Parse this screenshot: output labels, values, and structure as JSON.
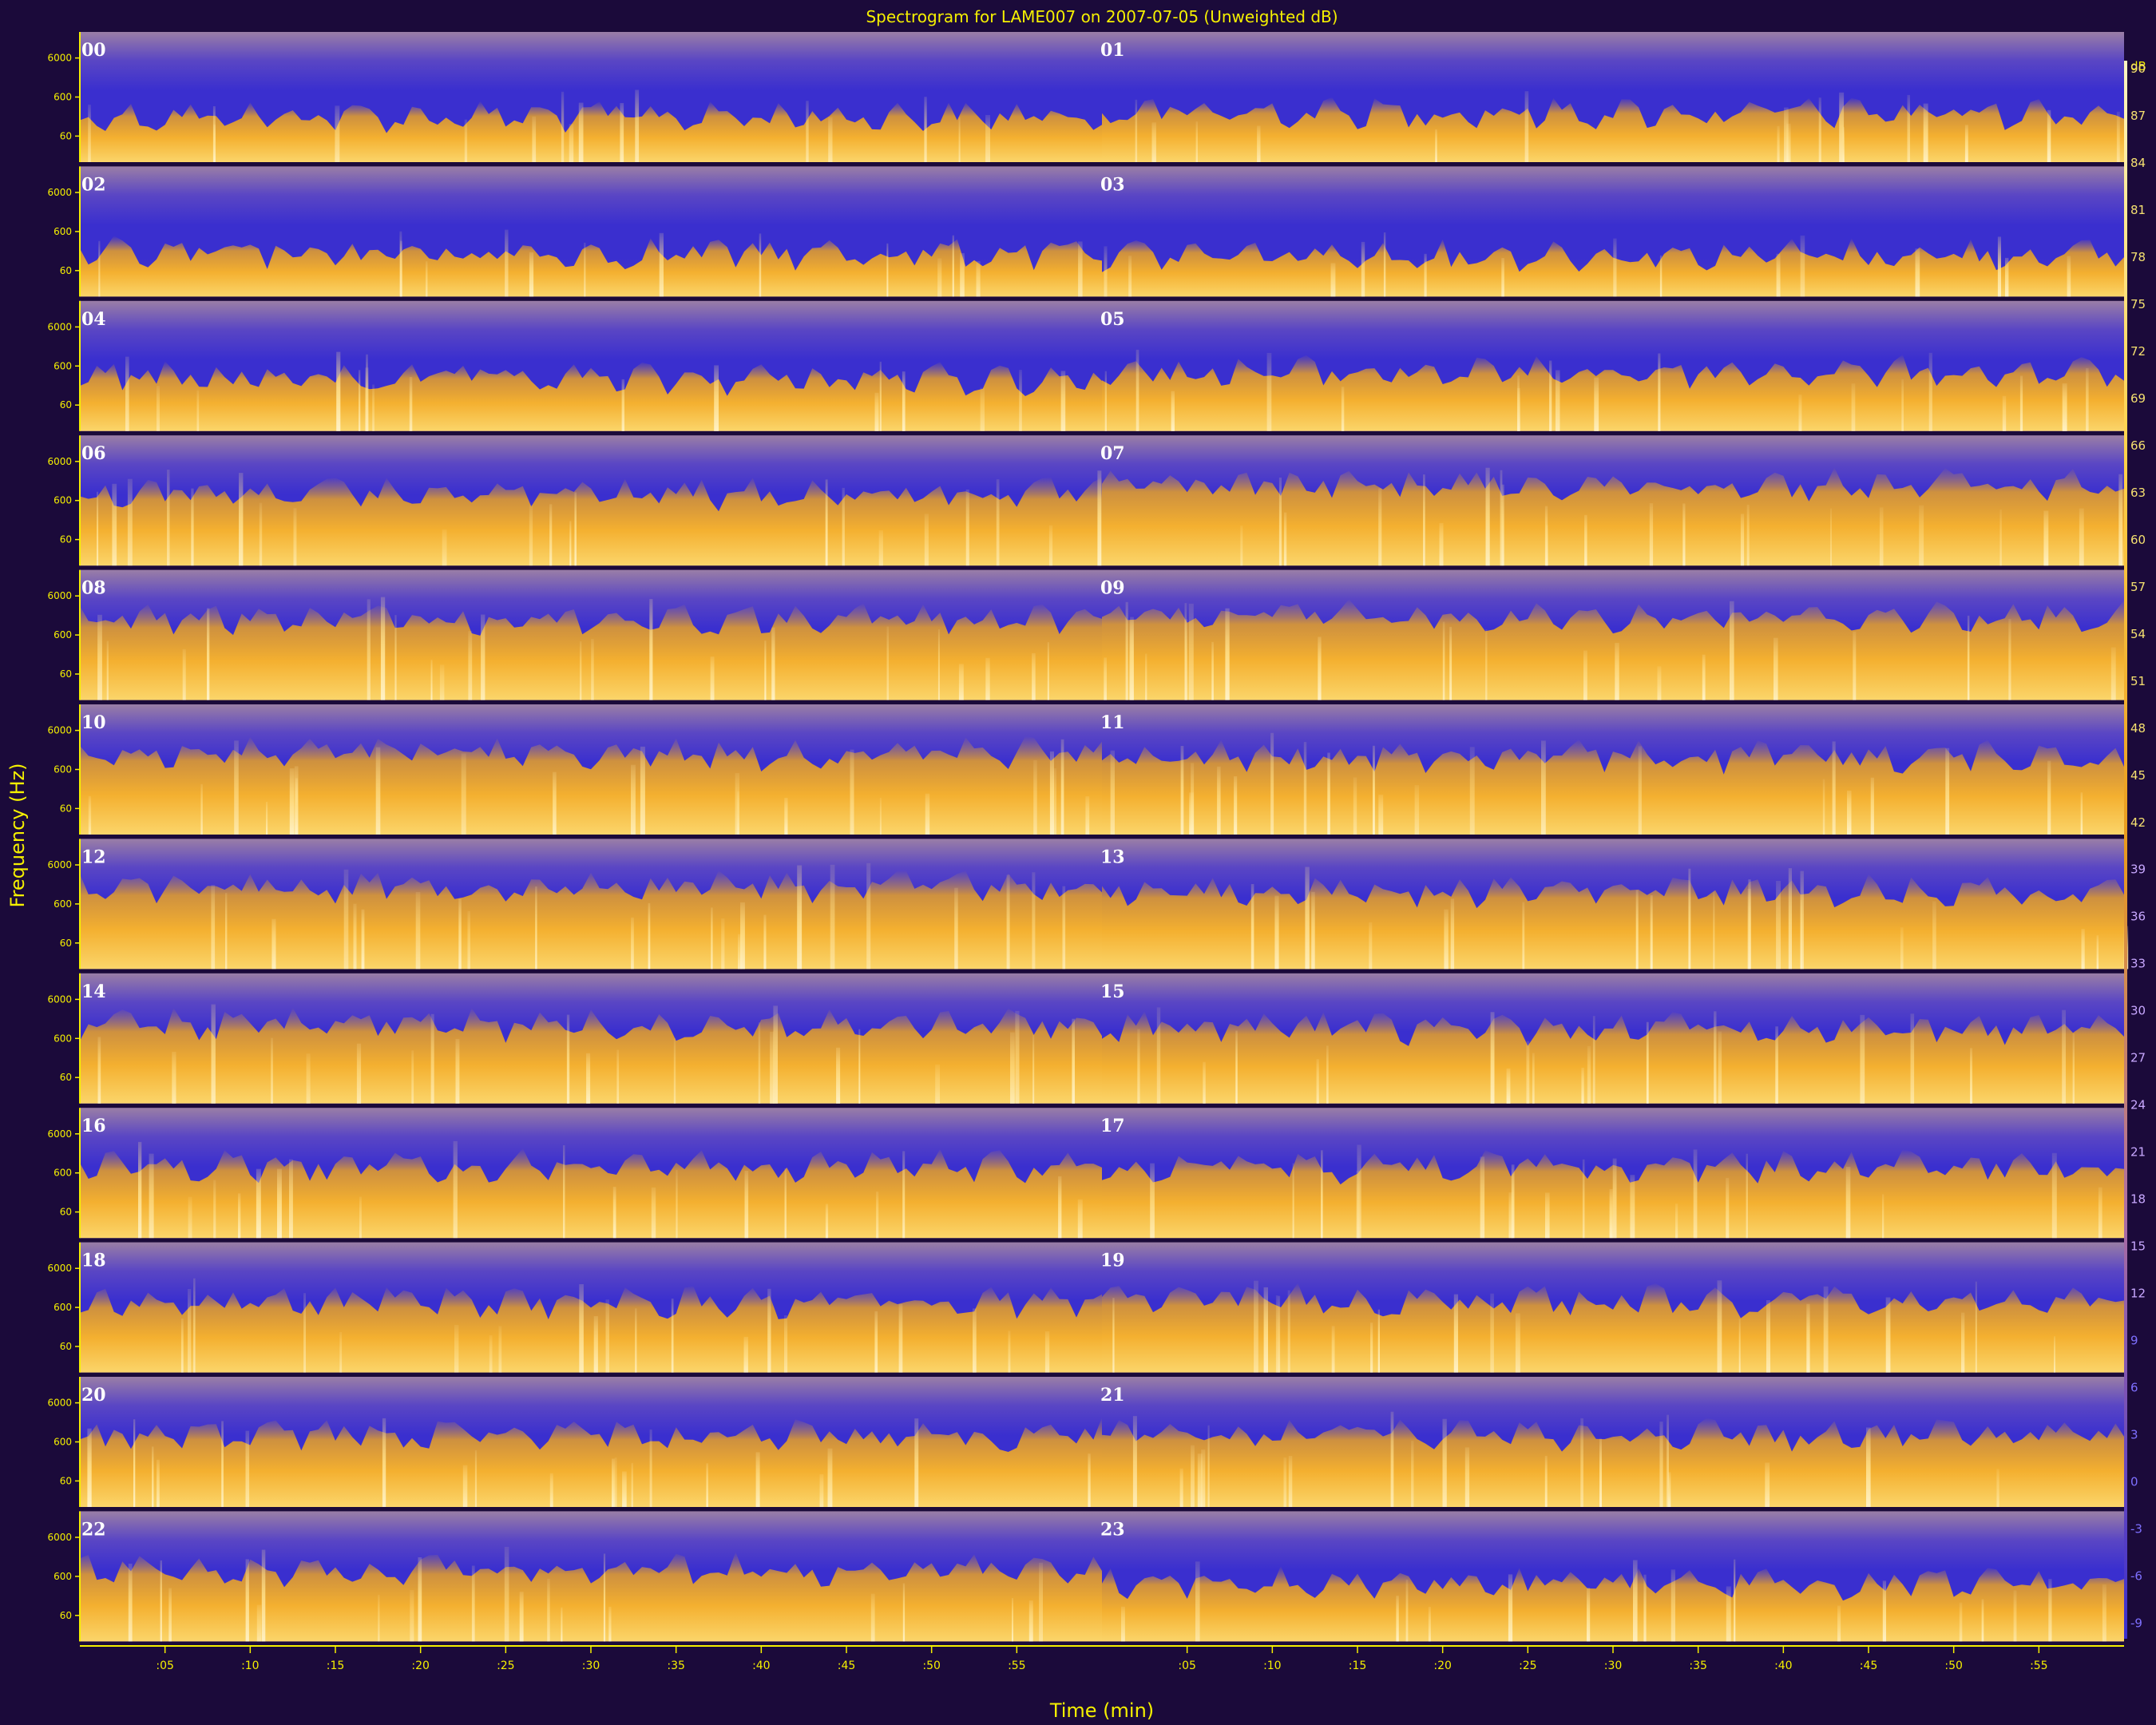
{
  "chart_data": {
    "type": "heatmap",
    "title": "Spectrogram for LAME007 on 2007-07-05 (Unweighted dB)",
    "xlabel": "Time (min)",
    "ylabel": "Frequency (Hz)",
    "x_tick_labels": [
      ":05",
      ":10",
      ":15",
      ":20",
      ":25",
      ":30",
      ":35",
      ":40",
      ":45",
      ":50",
      ":55"
    ],
    "y_tick_labels": [
      "6000",
      "600",
      "60"
    ],
    "colorbar": {
      "unit": "dB",
      "ticks": [
        90,
        87,
        84,
        81,
        78,
        75,
        72,
        69,
        66,
        63,
        60,
        57,
        54,
        51,
        48,
        45,
        42,
        39,
        36,
        33,
        30,
        27,
        24,
        21,
        18,
        15,
        12,
        9,
        6,
        3,
        0,
        -3,
        -6,
        -9
      ],
      "colors": {
        "high": "#ffd24a",
        "mid": "#e89a1e",
        "low": "#3a2fcf"
      }
    },
    "rows": [
      {
        "left_hour": "00",
        "right_hour": "01"
      },
      {
        "left_hour": "02",
        "right_hour": "03"
      },
      {
        "left_hour": "04",
        "right_hour": "05"
      },
      {
        "left_hour": "06",
        "right_hour": "07"
      },
      {
        "left_hour": "08",
        "right_hour": "09"
      },
      {
        "left_hour": "10",
        "right_hour": "11"
      },
      {
        "left_hour": "12",
        "right_hour": "13"
      },
      {
        "left_hour": "14",
        "right_hour": "15"
      },
      {
        "left_hour": "16",
        "right_hour": "17"
      },
      {
        "left_hour": "18",
        "right_hour": "19"
      },
      {
        "left_hour": "20",
        "right_hour": "21"
      },
      {
        "left_hour": "22",
        "right_hour": "23"
      }
    ],
    "activity_level_by_hour": [
      0.35,
      0.38,
      0.33,
      0.32,
      0.4,
      0.45,
      0.55,
      0.62,
      0.62,
      0.64,
      0.62,
      0.6,
      0.64,
      0.6,
      0.6,
      0.58,
      0.55,
      0.55,
      0.54,
      0.55,
      0.55,
      0.55,
      0.55,
      0.45
    ]
  }
}
